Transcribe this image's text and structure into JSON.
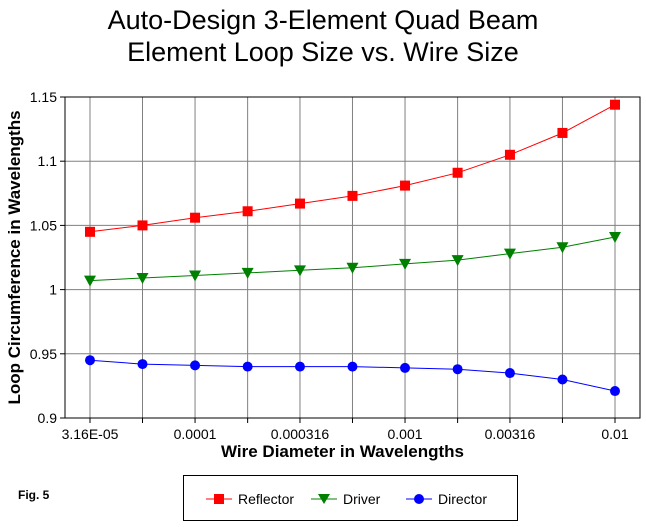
{
  "chart_data": {
    "type": "line",
    "title": [
      "Auto-Design 3-Element Quad Beam",
      "Element Loop Size vs. Wire Size"
    ],
    "xlabel": "Wire Diameter in Wavelengths",
    "ylabel": "Loop Circumference in Wavelengths",
    "x_scale": "log",
    "x": [
      3.16e-05,
      5.62e-05,
      0.0001,
      0.000178,
      0.000316,
      0.000562,
      0.001,
      0.00178,
      0.00316,
      0.00562,
      0.01
    ],
    "x_tick_labels": [
      {
        "value": 3.16e-05,
        "label": "3.16E-05"
      },
      {
        "value": 0.0001,
        "label": "0.0001"
      },
      {
        "value": 0.000316,
        "label": "0.000316"
      },
      {
        "value": 0.001,
        "label": "0.001"
      },
      {
        "value": 0.00316,
        "label": "0.00316"
      },
      {
        "value": 0.01,
        "label": "0.01"
      }
    ],
    "ylim": [
      0.9,
      1.15
    ],
    "y_ticks": [
      {
        "value": 0.9,
        "label": "0.9"
      },
      {
        "value": 0.95,
        "label": "0.95"
      },
      {
        "value": 1.0,
        "label": "1"
      },
      {
        "value": 1.05,
        "label": "1.05"
      },
      {
        "value": 1.1,
        "label": "1.1"
      },
      {
        "value": 1.15,
        "label": "1.15"
      }
    ],
    "grid": true,
    "legend_position": "bottom",
    "series": [
      {
        "name": "Reflector",
        "color": "#ff0000",
        "marker": "square",
        "values": [
          1.045,
          1.05,
          1.056,
          1.061,
          1.067,
          1.073,
          1.081,
          1.091,
          1.105,
          1.122,
          1.144
        ]
      },
      {
        "name": "Driver",
        "color": "#008000",
        "marker": "triangle-down",
        "values": [
          1.007,
          1.009,
          1.011,
          1.013,
          1.015,
          1.017,
          1.02,
          1.023,
          1.028,
          1.033,
          1.041
        ]
      },
      {
        "name": "Director",
        "color": "#0000ff",
        "marker": "circle",
        "values": [
          0.945,
          0.942,
          0.941,
          0.94,
          0.94,
          0.94,
          0.939,
          0.938,
          0.935,
          0.93,
          0.921
        ]
      }
    ]
  },
  "figure_label": "Fig. 5"
}
